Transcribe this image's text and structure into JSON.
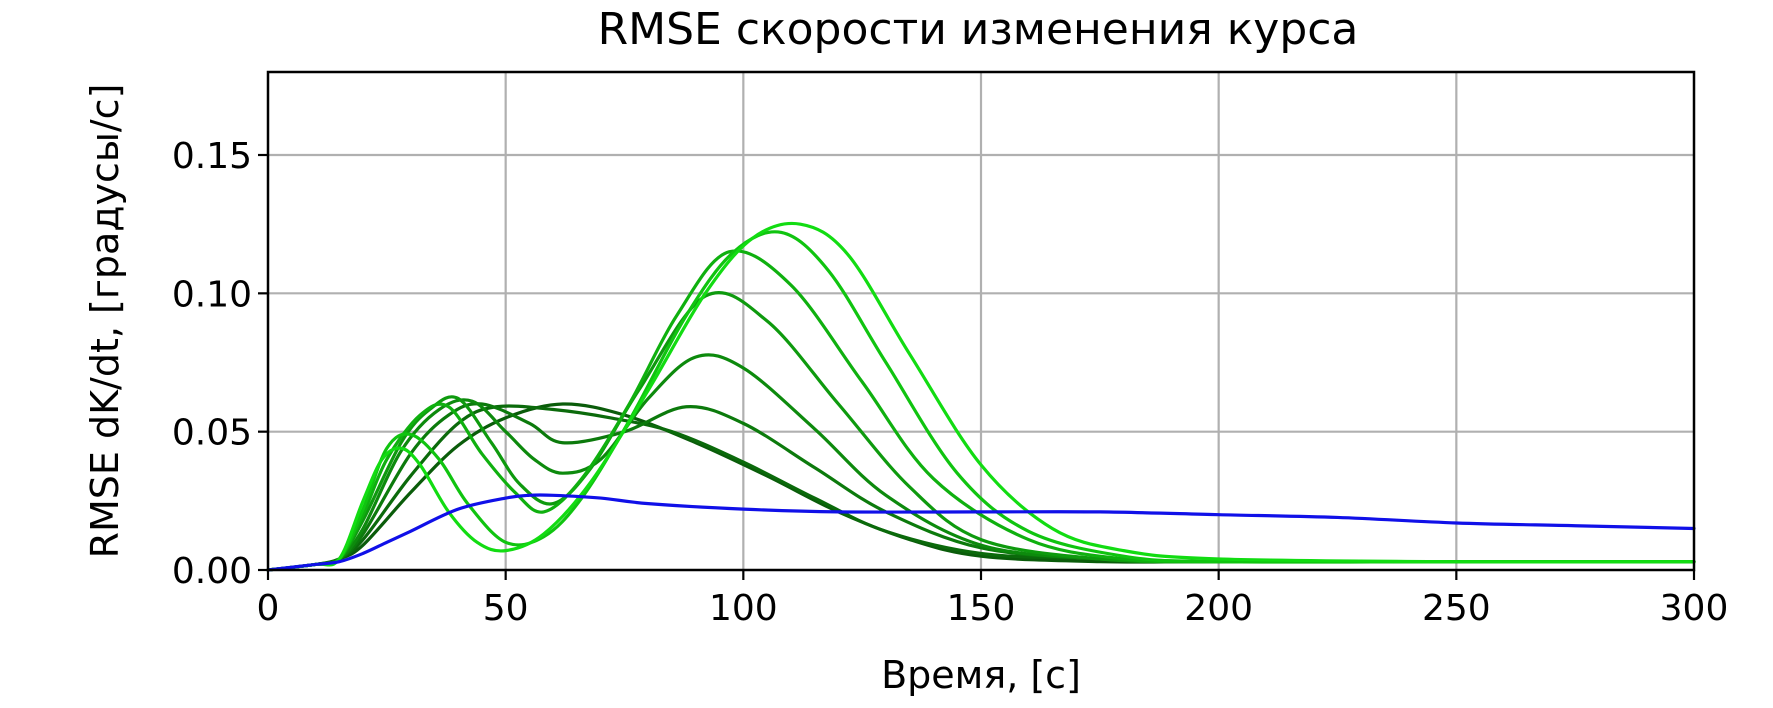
{
  "chart_data": {
    "type": "line",
    "title": "RMSE скорости изменения курса",
    "xlabel": "Время, [с]",
    "ylabel": "RMSE dK/dt, [градусы/с]",
    "xlim": [
      0,
      300
    ],
    "ylim": [
      0,
      0.18
    ],
    "xticks": [
      0,
      50,
      100,
      150,
      200,
      250,
      300
    ],
    "xtick_labels": [
      "0",
      "50",
      "100",
      "150",
      "200",
      "250",
      "300"
    ],
    "yticks": [
      0,
      0.05,
      0.1,
      0.15
    ],
    "ytick_labels": [
      "0.00",
      "0.05",
      "0.10",
      "0.15"
    ],
    "grid": true,
    "legend": "none",
    "colors": {
      "blue": "#1010e8",
      "greens": [
        "#0a5c0a",
        "#0b6a0b",
        "#0c7a0c",
        "#0d8a0d",
        "#0e9a0e",
        "#0fb00f",
        "#10c410",
        "#12dc12"
      ]
    },
    "series": [
      {
        "color": "#0a5c0a",
        "x": [
          0,
          10,
          15,
          20,
          30,
          40,
          50,
          62,
          75,
          90,
          105,
          120,
          135,
          150,
          175,
          200,
          250,
          300
        ],
        "y": [
          0,
          0.002,
          0.004,
          0.009,
          0.028,
          0.045,
          0.055,
          0.06,
          0.056,
          0.046,
          0.034,
          0.021,
          0.011,
          0.005,
          0.003,
          0.003,
          0.003,
          0.003
        ]
      },
      {
        "color": "#0b6a0b",
        "x": [
          0,
          10,
          15,
          20,
          30,
          40,
          48,
          60,
          72,
          85,
          100,
          115,
          130,
          150,
          175,
          200,
          250,
          300
        ],
        "y": [
          0,
          0.002,
          0.004,
          0.011,
          0.034,
          0.053,
          0.059,
          0.058,
          0.055,
          0.05,
          0.039,
          0.026,
          0.014,
          0.006,
          0.004,
          0.003,
          0.003,
          0.003
        ]
      },
      {
        "color": "#0c7a0c",
        "x": [
          0,
          10,
          15,
          20,
          30,
          38,
          45,
          55,
          62,
          75,
          88,
          100,
          115,
          130,
          150,
          175,
          200,
          250,
          300
        ],
        "y": [
          0,
          0.002,
          0.004,
          0.013,
          0.042,
          0.056,
          0.06,
          0.053,
          0.046,
          0.05,
          0.059,
          0.053,
          0.037,
          0.021,
          0.008,
          0.004,
          0.003,
          0.003,
          0.003
        ]
      },
      {
        "color": "#0d8a0d",
        "x": [
          0,
          10,
          15,
          20,
          28,
          36,
          43,
          50,
          56,
          62,
          70,
          80,
          90,
          100,
          115,
          130,
          150,
          175,
          200,
          250,
          300
        ],
        "y": [
          0,
          0.002,
          0.004,
          0.015,
          0.043,
          0.058,
          0.061,
          0.05,
          0.04,
          0.035,
          0.04,
          0.062,
          0.077,
          0.073,
          0.051,
          0.027,
          0.009,
          0.004,
          0.003,
          0.003,
          0.003
        ]
      },
      {
        "color": "#0e9a0e",
        "x": [
          0,
          10,
          15,
          20,
          28,
          34,
          40,
          47,
          53,
          60,
          68,
          78,
          92,
          105,
          120,
          135,
          150,
          175,
          200,
          250,
          300
        ],
        "y": [
          0,
          0.002,
          0.004,
          0.018,
          0.046,
          0.058,
          0.062,
          0.046,
          0.031,
          0.024,
          0.037,
          0.065,
          0.099,
          0.09,
          0.06,
          0.03,
          0.011,
          0.004,
          0.003,
          0.003,
          0.003
        ]
      },
      {
        "color": "#0fb00f",
        "x": [
          0,
          10,
          15,
          20,
          25,
          32,
          38,
          45,
          52,
          58,
          66,
          76,
          86,
          97,
          110,
          125,
          140,
          160,
          180,
          200,
          250,
          300
        ],
        "y": [
          0,
          0.002,
          0.004,
          0.02,
          0.04,
          0.056,
          0.059,
          0.042,
          0.028,
          0.021,
          0.033,
          0.06,
          0.092,
          0.115,
          0.103,
          0.068,
          0.033,
          0.011,
          0.004,
          0.003,
          0.003,
          0.003
        ]
      },
      {
        "color": "#10c410",
        "x": [
          0,
          10,
          15,
          20,
          25,
          30,
          36,
          42,
          50,
          58,
          66,
          76,
          88,
          98,
          108,
          118,
          130,
          145,
          160,
          180,
          200,
          250,
          300
        ],
        "y": [
          0,
          0.002,
          0.004,
          0.022,
          0.044,
          0.049,
          0.04,
          0.024,
          0.01,
          0.012,
          0.026,
          0.054,
          0.092,
          0.115,
          0.122,
          0.108,
          0.075,
          0.035,
          0.014,
          0.005,
          0.003,
          0.003,
          0.003
        ]
      },
      {
        "color": "#12dc12",
        "x": [
          0,
          10,
          15,
          20,
          24,
          28,
          32,
          38,
          44,
          50,
          58,
          68,
          80,
          92,
          102,
          112,
          122,
          135,
          150,
          165,
          180,
          200,
          250,
          300
        ],
        "y": [
          0,
          0.002,
          0.004,
          0.025,
          0.04,
          0.044,
          0.038,
          0.021,
          0.01,
          0.007,
          0.013,
          0.032,
          0.065,
          0.1,
          0.12,
          0.125,
          0.114,
          0.078,
          0.038,
          0.015,
          0.007,
          0.004,
          0.003,
          0.003
        ]
      },
      {
        "color": "#1010e8",
        "x": [
          0,
          5,
          10,
          15,
          20,
          25,
          30,
          40,
          50,
          55,
          60,
          70,
          80,
          100,
          120,
          150,
          175,
          200,
          225,
          250,
          275,
          300
        ],
        "y": [
          0,
          0.001,
          0.002,
          0.003,
          0.006,
          0.01,
          0.014,
          0.022,
          0.026,
          0.027,
          0.027,
          0.026,
          0.024,
          0.022,
          0.021,
          0.021,
          0.021,
          0.02,
          0.019,
          0.017,
          0.016,
          0.015
        ]
      }
    ]
  }
}
